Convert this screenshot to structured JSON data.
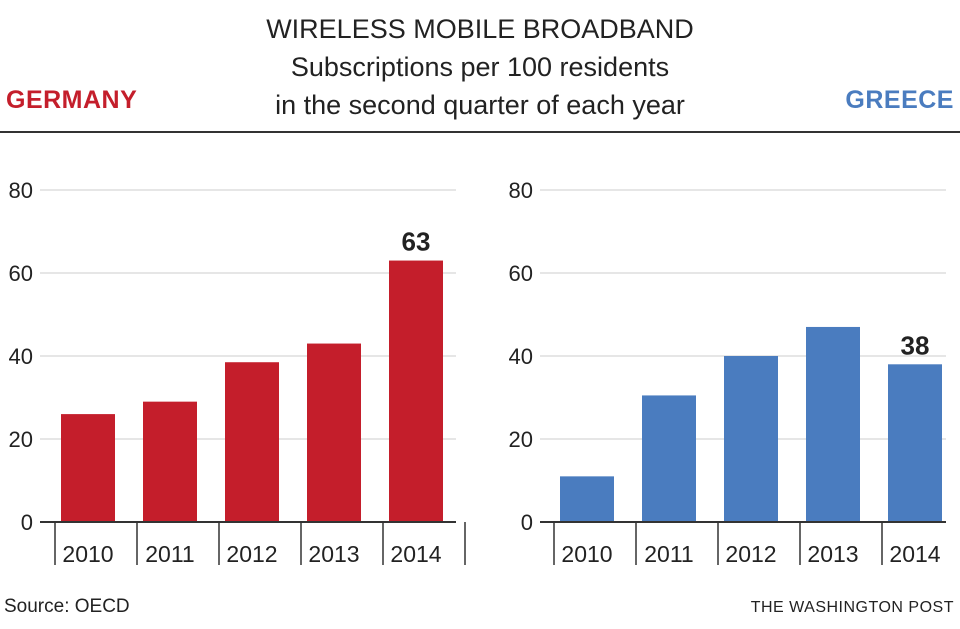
{
  "header": {
    "title_line1": "WIRELESS MOBILE BROADBAND",
    "title_line2": "Subscriptions per 100 residents",
    "title_line3": "in the second quarter of each year"
  },
  "colors": {
    "germany": "#c41e2b",
    "greece": "#4a7cbf",
    "grid": "#cccccc",
    "axis": "#333333"
  },
  "chart_data": [
    {
      "type": "bar",
      "title": "GERMANY",
      "categories": [
        "2010",
        "2011",
        "2012",
        "2013",
        "2014"
      ],
      "values": [
        26,
        29,
        38.5,
        43,
        63
      ],
      "ylim": [
        0,
        80
      ],
      "yticks": [
        0,
        20,
        40,
        60,
        80
      ],
      "data_labels": [
        {
          "index": 4,
          "text": "63"
        }
      ],
      "color": "#c41e2b",
      "xlabel": "",
      "ylabel": ""
    },
    {
      "type": "bar",
      "title": "GREECE",
      "categories": [
        "2010",
        "2011",
        "2012",
        "2013",
        "2014"
      ],
      "values": [
        11,
        30.5,
        40,
        47,
        38
      ],
      "ylim": [
        0,
        80
      ],
      "yticks": [
        0,
        20,
        40,
        60,
        80
      ],
      "data_labels": [
        {
          "index": 4,
          "text": "38"
        }
      ],
      "color": "#4a7cbf",
      "xlabel": "",
      "ylabel": ""
    }
  ],
  "footer": {
    "source": "Source: OECD",
    "credit": "THE WASHINGTON POST"
  }
}
